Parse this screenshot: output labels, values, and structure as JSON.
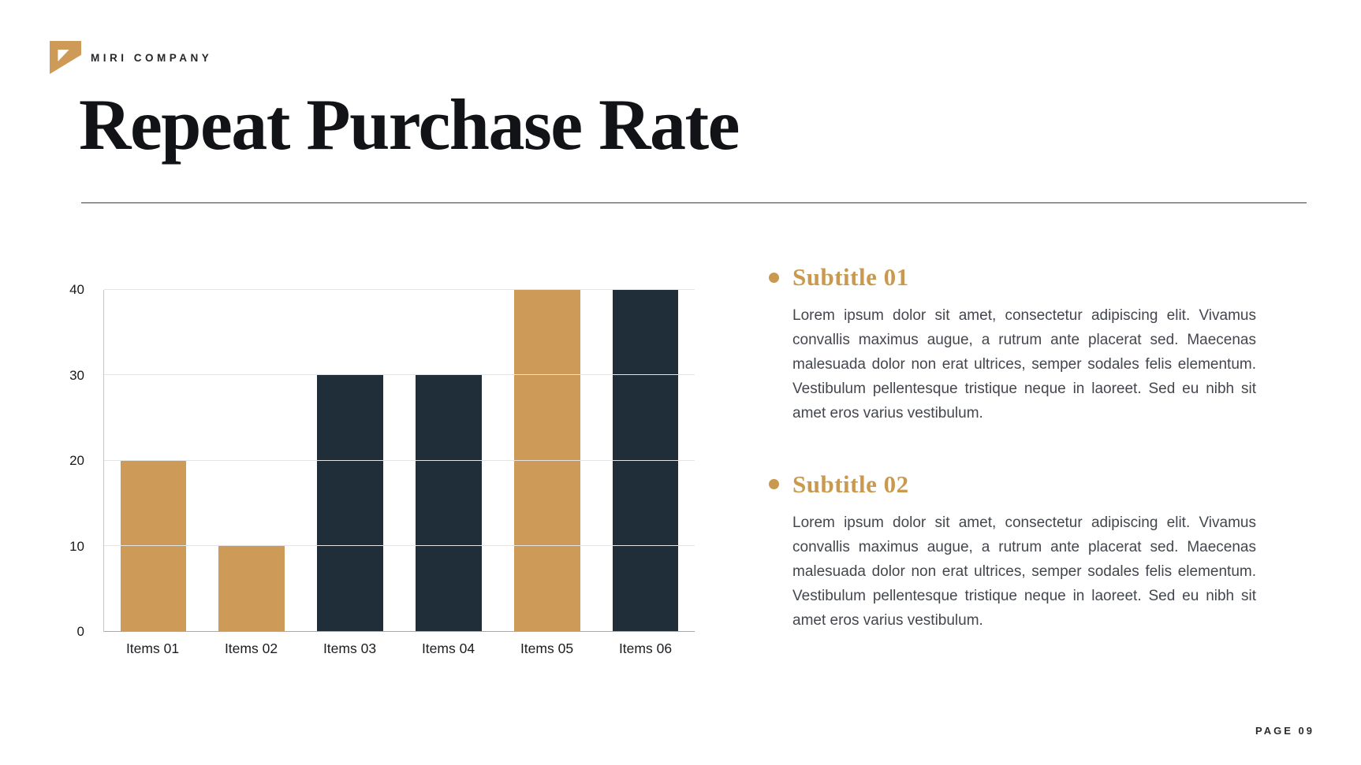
{
  "brand": {
    "logo_icon": "pennant-icon",
    "name": "MIRI COMPANY"
  },
  "header": {
    "title": "Repeat Purchase Rate"
  },
  "chart_data": {
    "type": "bar",
    "title": "Repeat Purchase Rate",
    "categories": [
      "Items 01",
      "Items 02",
      "Items 03",
      "Items 04",
      "Items 05",
      "Items 06"
    ],
    "values": [
      20,
      10,
      30,
      30,
      40,
      40
    ],
    "bar_colors": [
      "#CE9A57",
      "#CE9A57",
      "#1F2E38",
      "#1F2E38",
      "#CE9A57",
      "#1F2E38"
    ],
    "xlabel": "",
    "ylabel": "",
    "ylim": [
      0,
      40
    ],
    "yticks": [
      0,
      10,
      20,
      30,
      40
    ],
    "grid": true,
    "legend_position": "none"
  },
  "sections": [
    {
      "subtitle": "Subtitle 01",
      "body": "Lorem ipsum dolor sit amet, consectetur adipiscing elit. Vivamus convallis maximus augue, a rutrum ante placerat sed. Maecenas malesuada dolor non erat ultrices, semper sodales felis elementum. Vestibulum pellentesque tristique neque in laoreet. Sed eu nibh sit amet eros varius vestibulum."
    },
    {
      "subtitle": "Subtitle 02",
      "body": "Lorem ipsum dolor sit amet, consectetur adipiscing elit. Vivamus convallis maximus augue, a rutrum ante placerat sed. Maecenas malesuada dolor non erat ultrices, semper sodales felis elementum. Vestibulum pellentesque tristique neque in laoreet. Sed eu nibh sit amet eros varius vestibulum."
    }
  ],
  "footer": {
    "page_label": "PAGE 09"
  },
  "colors": {
    "gold": "#CE9A57",
    "navy": "#1F2E38",
    "text_gold": "#C8994F",
    "gridline": "#E4E4E4",
    "axis_baseline": "#A8A8A8",
    "title_text": "#111316",
    "body_text": "#43474D"
  }
}
